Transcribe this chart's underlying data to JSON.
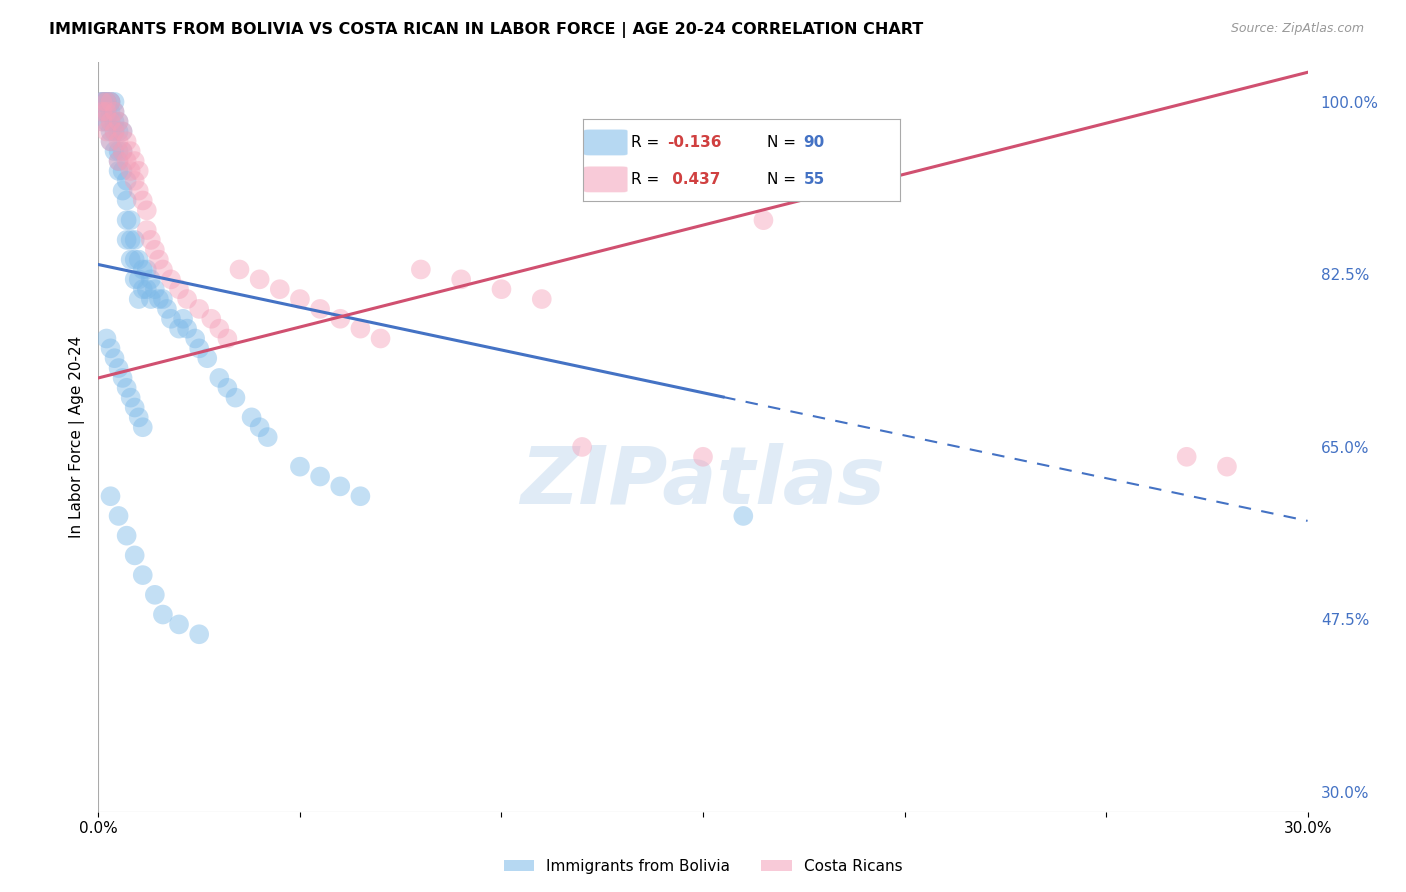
{
  "title": "IMMIGRANTS FROM BOLIVIA VS COSTA RICAN IN LABOR FORCE | AGE 20-24 CORRELATION CHART",
  "source": "Source: ZipAtlas.com",
  "ylabel": "In Labor Force | Age 20-24",
  "x_min": 0.0,
  "x_max": 0.3,
  "y_min": 0.28,
  "y_max": 1.04,
  "y_ticks": [
    0.3,
    0.475,
    0.65,
    0.825,
    1.0
  ],
  "y_tick_labels": [
    "30.0%",
    "47.5%",
    "65.0%",
    "82.5%",
    "100.0%"
  ],
  "x_ticks": [
    0.0,
    0.05,
    0.1,
    0.15,
    0.2,
    0.25,
    0.3
  ],
  "x_tick_labels": [
    "0.0%",
    "",
    "",
    "",
    "",
    "",
    "30.0%"
  ],
  "bolivia_color": "#7BB8E8",
  "costa_rica_color": "#F4A0B8",
  "bolivia_line_color": "#4472C4",
  "costa_rica_line_color": "#D05070",
  "watermark": "ZIPatlas",
  "bolivia_R": -0.136,
  "bolivia_N": 90,
  "costa_rica_R": 0.437,
  "costa_rica_N": 55,
  "bolivia_line_x0": 0.0,
  "bolivia_line_y0": 0.835,
  "bolivia_line_x1": 0.3,
  "bolivia_line_y1": 0.575,
  "bolivia_line_solid_end": 0.155,
  "costa_rica_line_x0": 0.0,
  "costa_rica_line_y0": 0.72,
  "costa_rica_line_x1": 0.3,
  "costa_rica_line_y1": 1.03,
  "bolivia_x": [
    0.001,
    0.001,
    0.001,
    0.001,
    0.001,
    0.002,
    0.002,
    0.002,
    0.002,
    0.002,
    0.003,
    0.003,
    0.003,
    0.003,
    0.003,
    0.003,
    0.004,
    0.004,
    0.004,
    0.004,
    0.004,
    0.005,
    0.005,
    0.005,
    0.005,
    0.005,
    0.006,
    0.006,
    0.006,
    0.006,
    0.007,
    0.007,
    0.007,
    0.007,
    0.008,
    0.008,
    0.008,
    0.009,
    0.009,
    0.009,
    0.01,
    0.01,
    0.01,
    0.011,
    0.011,
    0.012,
    0.012,
    0.013,
    0.013,
    0.014,
    0.015,
    0.016,
    0.017,
    0.018,
    0.02,
    0.021,
    0.022,
    0.024,
    0.025,
    0.027,
    0.03,
    0.032,
    0.034,
    0.038,
    0.04,
    0.042,
    0.05,
    0.055,
    0.06,
    0.065,
    0.002,
    0.003,
    0.004,
    0.005,
    0.006,
    0.007,
    0.008,
    0.009,
    0.01,
    0.011,
    0.003,
    0.005,
    0.007,
    0.009,
    0.011,
    0.014,
    0.016,
    0.02,
    0.025,
    0.16
  ],
  "bolivia_y": [
    1.0,
    1.0,
    1.0,
    0.99,
    0.98,
    1.0,
    1.0,
    1.0,
    0.99,
    0.98,
    1.0,
    1.0,
    0.99,
    0.98,
    0.97,
    0.96,
    1.0,
    0.99,
    0.98,
    0.97,
    0.95,
    0.98,
    0.97,
    0.95,
    0.94,
    0.93,
    0.97,
    0.95,
    0.93,
    0.91,
    0.92,
    0.9,
    0.88,
    0.86,
    0.88,
    0.86,
    0.84,
    0.86,
    0.84,
    0.82,
    0.84,
    0.82,
    0.8,
    0.83,
    0.81,
    0.83,
    0.81,
    0.82,
    0.8,
    0.81,
    0.8,
    0.8,
    0.79,
    0.78,
    0.77,
    0.78,
    0.77,
    0.76,
    0.75,
    0.74,
    0.72,
    0.71,
    0.7,
    0.68,
    0.67,
    0.66,
    0.63,
    0.62,
    0.61,
    0.6,
    0.76,
    0.75,
    0.74,
    0.73,
    0.72,
    0.71,
    0.7,
    0.69,
    0.68,
    0.67,
    0.6,
    0.58,
    0.56,
    0.54,
    0.52,
    0.5,
    0.48,
    0.47,
    0.46,
    0.58
  ],
  "costa_rica_x": [
    0.001,
    0.001,
    0.001,
    0.002,
    0.002,
    0.002,
    0.003,
    0.003,
    0.003,
    0.004,
    0.004,
    0.005,
    0.005,
    0.005,
    0.006,
    0.006,
    0.007,
    0.007,
    0.008,
    0.008,
    0.009,
    0.009,
    0.01,
    0.01,
    0.011,
    0.012,
    0.012,
    0.013,
    0.014,
    0.015,
    0.016,
    0.018,
    0.02,
    0.022,
    0.025,
    0.028,
    0.03,
    0.032,
    0.035,
    0.04,
    0.045,
    0.05,
    0.055,
    0.06,
    0.065,
    0.07,
    0.08,
    0.09,
    0.1,
    0.11,
    0.12,
    0.15,
    0.165,
    0.27,
    0.28
  ],
  "costa_rica_y": [
    1.0,
    0.99,
    0.98,
    1.0,
    0.99,
    0.97,
    1.0,
    0.98,
    0.96,
    0.99,
    0.97,
    0.98,
    0.96,
    0.94,
    0.97,
    0.95,
    0.96,
    0.94,
    0.95,
    0.93,
    0.94,
    0.92,
    0.93,
    0.91,
    0.9,
    0.89,
    0.87,
    0.86,
    0.85,
    0.84,
    0.83,
    0.82,
    0.81,
    0.8,
    0.79,
    0.78,
    0.77,
    0.76,
    0.83,
    0.82,
    0.81,
    0.8,
    0.79,
    0.78,
    0.77,
    0.76,
    0.83,
    0.82,
    0.81,
    0.8,
    0.65,
    0.64,
    0.88,
    0.64,
    0.63
  ]
}
